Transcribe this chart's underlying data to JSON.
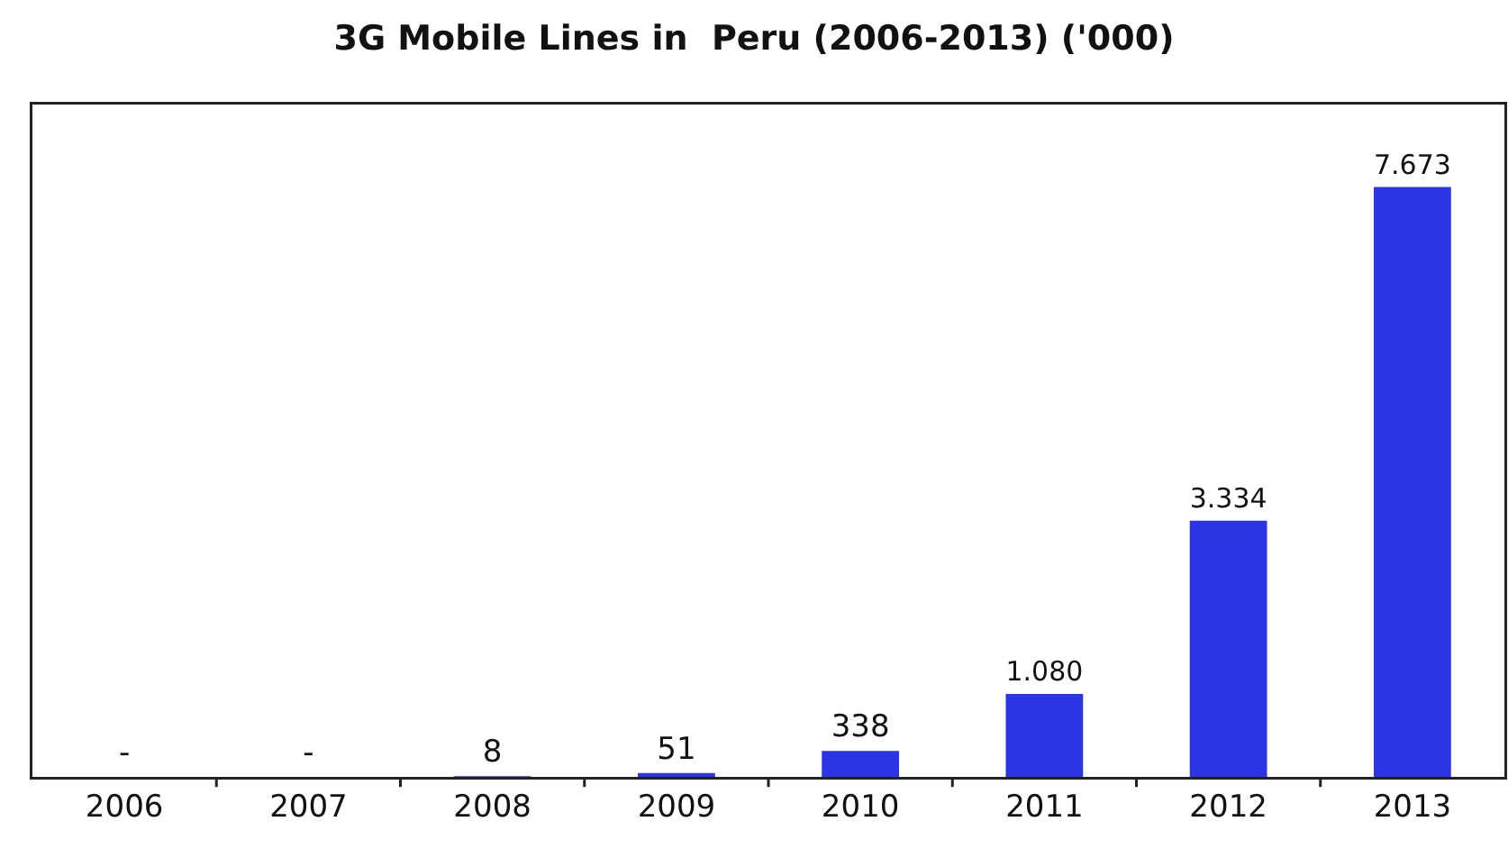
{
  "chart_data": {
    "type": "bar",
    "title": "3G Mobile Lines in  Peru (2006-2013) ('000)",
    "categories": [
      "2006",
      "2007",
      "2008",
      "2009",
      "2010",
      "2011",
      "2012",
      "2013"
    ],
    "values": [
      0,
      0,
      8,
      51,
      338,
      1080,
      3334,
      7673
    ],
    "value_labels": [
      "-",
      "-",
      "8",
      "51",
      "338",
      "1.080",
      "3.334",
      "7.673"
    ],
    "color": "#2b35e6",
    "grid": false,
    "legend": false
  }
}
